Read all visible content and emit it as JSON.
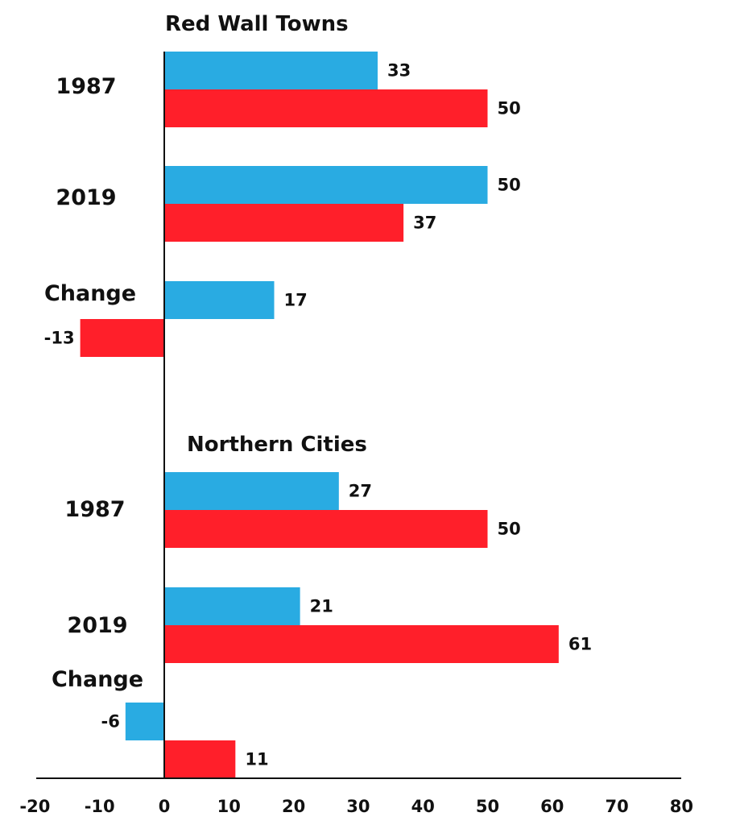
{
  "chart_data": {
    "type": "bar",
    "orientation": "horizontal",
    "xlim": [
      -20,
      80
    ],
    "xticks": [
      -20,
      -10,
      0,
      10,
      20,
      30,
      40,
      50,
      60,
      70,
      80
    ],
    "grid": false,
    "legend": "none",
    "colors": {
      "blue": "#29ABE2",
      "red": "#FF1F2A"
    },
    "groups": [
      {
        "title": "Red Wall Towns",
        "rows": [
          {
            "label": "1987",
            "blue": 33,
            "red": 50
          },
          {
            "label": "2019",
            "blue": 50,
            "red": 37
          },
          {
            "label": "Change",
            "blue": 17,
            "red": -13
          }
        ]
      },
      {
        "title": "Northern Cities",
        "rows": [
          {
            "label": "1987",
            "blue": 27,
            "red": 50
          },
          {
            "label": "2019",
            "blue": 21,
            "red": 61
          },
          {
            "label": "Change",
            "blue": -6,
            "red": 11
          }
        ]
      }
    ]
  }
}
